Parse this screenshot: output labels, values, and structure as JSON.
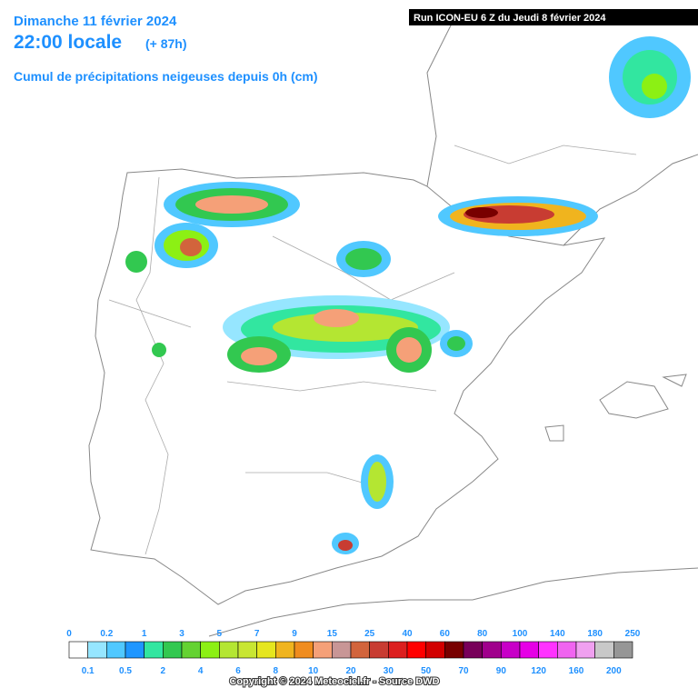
{
  "header": {
    "date": "Dimanche 11 février 2024",
    "time": "22:00 locale",
    "lead": "(+ 87h)",
    "subtitle": "Cumul de précipitations neigeuses depuis 0h (cm)"
  },
  "run": "Run ICON-EU 6 Z du Jeudi 8 février 2024",
  "legend": {
    "labels": [
      "0",
      "0.1",
      "0.2",
      "0.5",
      "1",
      "2",
      "3",
      "4",
      "5",
      "6",
      "7",
      "8",
      "9",
      "10",
      "15",
      "20",
      "25",
      "30",
      "40",
      "50",
      "60",
      "70",
      "80",
      "90",
      "100",
      "120",
      "140",
      "160",
      "180",
      "200",
      "250"
    ],
    "colors": [
      "#ffffff",
      "#96e6ff",
      "#50c8ff",
      "#1e96ff",
      "#32e6a0",
      "#32c850",
      "#64d232",
      "#8cf014",
      "#b4e632",
      "#c8e632",
      "#e6e61e",
      "#f0b41e",
      "#f08c1e",
      "#f5a078",
      "#c89696",
      "#d2643c",
      "#c83c32",
      "#dc1e1e",
      "#ff0000",
      "#d20000",
      "#780000",
      "#78005a",
      "#a0008c",
      "#c800c8",
      "#e600e6",
      "#ff32ff",
      "#f064f0",
      "#f0a0f0",
      "#c8c8c8",
      "#969696",
      "#646464",
      "#323232"
    ]
  },
  "copyright": "Copyright © 2024 Meteociel.fr - Source DWD"
}
